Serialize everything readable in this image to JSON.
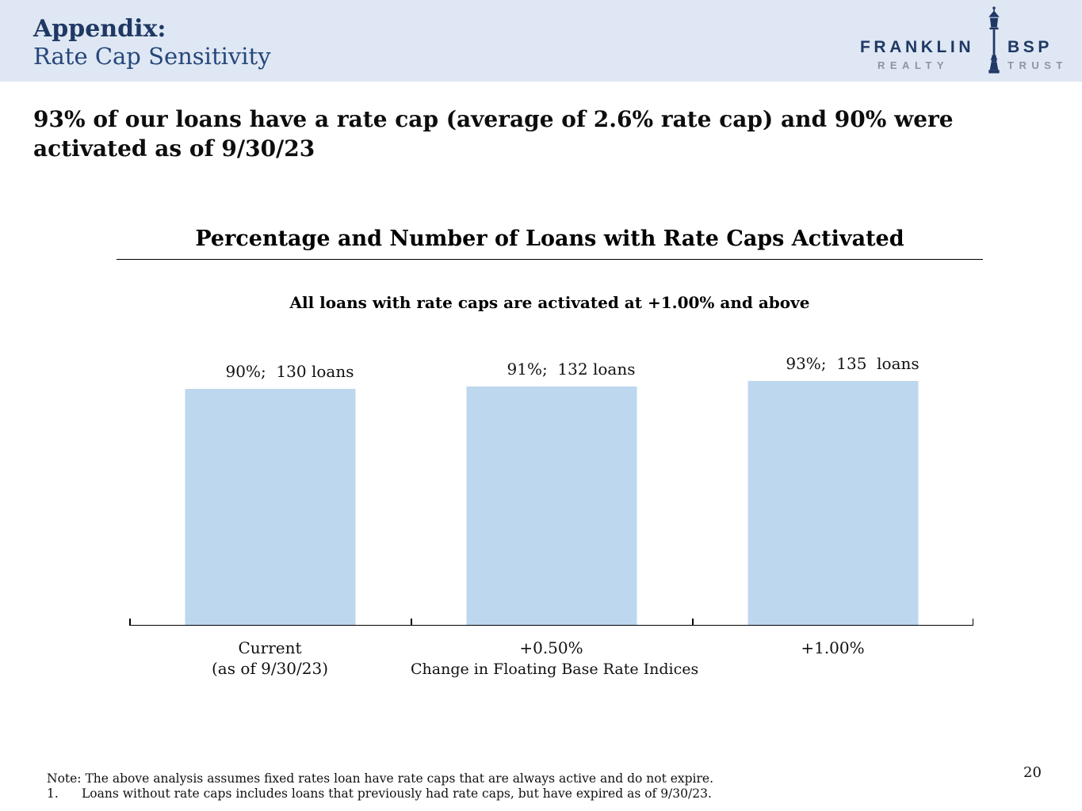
{
  "header": {
    "title_bold": "Appendix:",
    "title_regular": "Rate Cap Sensitivity",
    "logo": {
      "name_left": "FRANKLIN",
      "name_right": "BSP",
      "sub_left": "REALTY",
      "sub_right": "TRUST"
    }
  },
  "headline": {
    "lines": [
      "93% of our loans have a rate cap (average of 2.6% rate cap) and 90% were",
      "activated as of 9/30/23"
    ]
  },
  "chart_data": {
    "type": "bar",
    "title": "Percentage and Number of Loans with Rate Caps Activated",
    "subtitle": "All loans with rate caps are activated at +1.00% and above",
    "categories": [
      "Current (as of 9/30/23)",
      "+0.50%",
      "+1.00%"
    ],
    "category_lines": [
      [
        "Current",
        "(as of 9/30/23)"
      ],
      [
        "+0.50%",
        ""
      ],
      [
        "+1.00%",
        ""
      ]
    ],
    "values": [
      90,
      91,
      93
    ],
    "loans": [
      130,
      132,
      135
    ],
    "bar_labels": [
      "90%;  130 loans",
      "91%;  132 loans",
      "93%;  135  loans"
    ],
    "xlabel": "Change in Floating Base Rate Indices",
    "ylabel": "",
    "ylim": [
      0,
      100
    ],
    "grid": false,
    "legend": "none",
    "bar_color": "#BDD7EE"
  },
  "footnotes": {
    "note": "Note: The above analysis assumes fixed rates loan have rate caps that are always active and do not expire.",
    "item_number": "1.",
    "item_text": "Loans without rate caps includes loans that previously had rate caps, but have expired as of 9/30/23."
  },
  "page_number": "20",
  "colors": {
    "header_bg": "#DEE7F3",
    "navy": "#1F3864",
    "navy_soft": "#25477A",
    "logo_gray": "#8E959E",
    "bar_fill": "#BDD7EE"
  }
}
